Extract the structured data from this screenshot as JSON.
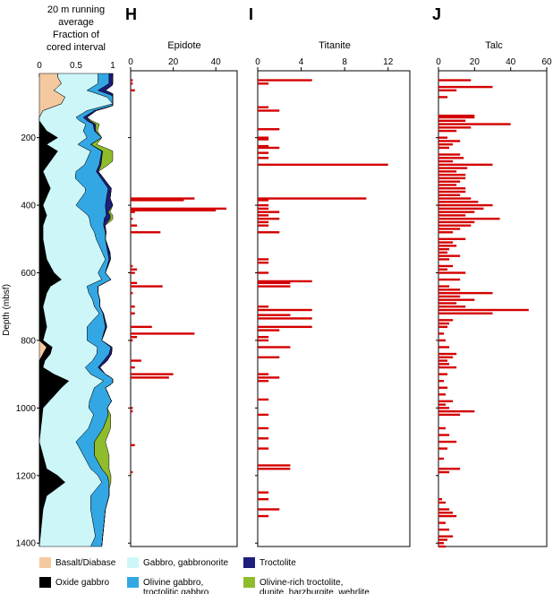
{
  "chart_data": [
    {
      "type": "area",
      "panel_id": "lithology",
      "title_lines": [
        "20 m running",
        "average",
        "Fraction of",
        "cored interval"
      ],
      "ylabel": "Depth (mbsf)",
      "xlim": [
        0,
        1
      ],
      "ylim": [
        1410,
        10
      ],
      "xticks": [
        0,
        0.5,
        1
      ],
      "xtick_labels": [
        "0",
        "0.5",
        "1"
      ],
      "yticks": [
        200,
        400,
        600,
        800,
        1000,
        1200,
        1400
      ],
      "series": [
        {
          "name": "Basalt/Diabase",
          "color": "#f4c9a0",
          "depth": [
            20,
            40,
            60,
            80,
            100,
            120,
            140,
            160,
            200,
            300,
            500,
            600,
            800,
            820,
            840,
            860,
            880,
            900,
            1000,
            1200,
            1410
          ],
          "frac": [
            0.25,
            0.3,
            0.2,
            0.35,
            0.3,
            0.05,
            0,
            0,
            0,
            0,
            0,
            0,
            0,
            0.1,
            0.05,
            0,
            0,
            0,
            0,
            0,
            0
          ]
        },
        {
          "name": "Oxide gabbro",
          "color": "#000000",
          "depth": [
            20,
            150,
            180,
            200,
            220,
            240,
            300,
            350,
            400,
            430,
            460,
            500,
            560,
            600,
            620,
            640,
            660,
            700,
            760,
            800,
            840,
            880,
            900,
            920,
            940,
            1000,
            1100,
            1180,
            1200,
            1220,
            1260,
            1300,
            1410
          ],
          "frac": [
            0,
            0,
            0.1,
            0.25,
            0.1,
            0.25,
            0.05,
            0.15,
            0.05,
            0.1,
            0.05,
            0.05,
            0.1,
            0.2,
            0.3,
            0.15,
            0.1,
            0.05,
            0.1,
            0.05,
            0.1,
            0.05,
            0.2,
            0.4,
            0.3,
            0.05,
            0,
            0.1,
            0.25,
            0.35,
            0.1,
            0.05,
            0
          ]
        },
        {
          "name": "Gabbro, gabbronorite",
          "color": "#cdf6f9",
          "depth": [
            20,
            60,
            100,
            140,
            160,
            200,
            240,
            280,
            320,
            360,
            400,
            440,
            480,
            520,
            560,
            600,
            640,
            680,
            720,
            760,
            800,
            860,
            900,
            940,
            980,
            1020,
            1060,
            1100,
            1140,
            1180,
            1220,
            1260,
            1300,
            1340,
            1380,
            1410
          ],
          "frac": [
            0.55,
            0.45,
            0.7,
            0.5,
            0.6,
            0.4,
            0.45,
            0.5,
            0.4,
            0.5,
            0.45,
            0.6,
            0.7,
            0.75,
            0.8,
            0.6,
            0.5,
            0.65,
            0.75,
            0.55,
            0.6,
            0.65,
            0.5,
            0.45,
            0.55,
            0.7,
            0.65,
            0.5,
            0.55,
            0.6,
            0.5,
            0.6,
            0.65,
            0.7,
            0.75,
            0.7
          ]
        },
        {
          "name": "Olivine gabbro, troctolitic gabbro",
          "color": "#33a7e3",
          "depth": [
            20,
            60,
            100,
            140,
            160,
            200,
            240,
            280,
            320,
            360,
            400,
            440,
            480,
            520,
            560,
            600,
            640,
            680,
            720,
            760,
            800,
            860,
            900,
            940,
            980,
            1020,
            1060,
            1100,
            1140,
            1180,
            1220,
            1260,
            1300,
            1340,
            1380,
            1410
          ],
          "frac": [
            0.15,
            0.15,
            0.1,
            0.1,
            0.1,
            0.2,
            0.15,
            0.2,
            0.35,
            0.3,
            0.4,
            0.2,
            0.15,
            0.1,
            0.05,
            0.1,
            0.15,
            0.1,
            0.05,
            0.25,
            0.2,
            0.15,
            0.2,
            0.15,
            0.3,
            0.2,
            0.2,
            0.25,
            0.15,
            0.15,
            0.1,
            0.25,
            0.2,
            0.15,
            0.1,
            0.15
          ]
        },
        {
          "name": "Troctolite",
          "color": "#1d1d7a",
          "depth": [
            20,
            60,
            80,
            100,
            140,
            200,
            300,
            380,
            400,
            420,
            440,
            460,
            500,
            540,
            600,
            700,
            760,
            800,
            860,
            900,
            1000,
            1410
          ],
          "frac": [
            0.05,
            0.1,
            0.05,
            0,
            0.05,
            0,
            0.03,
            0.05,
            0.1,
            0.03,
            0.08,
            0.02,
            0,
            0.03,
            0,
            0,
            0.02,
            0,
            0.05,
            0,
            0,
            0
          ]
        },
        {
          "name": "Olivine-rich troctolite, dunite, harzburgite, wehrlite",
          "color": "#8fbc2a",
          "depth": [
            20,
            140,
            160,
            200,
            240,
            260,
            280,
            300,
            400,
            440,
            460,
            500,
            600,
            1000,
            1060,
            1100,
            1140,
            1160,
            1180,
            1200,
            1240,
            1300,
            1410
          ],
          "frac": [
            0,
            0,
            0.05,
            0,
            0.15,
            0.2,
            0.1,
            0,
            0,
            0.05,
            0,
            0,
            0,
            0,
            0.1,
            0.15,
            0.2,
            0.15,
            0.1,
            0.05,
            0,
            0,
            0
          ]
        }
      ]
    },
    {
      "type": "bar",
      "panel_id": "epidote",
      "letter": "H",
      "title": "Epidote",
      "xlim": [
        0,
        50
      ],
      "ylim": [
        1410,
        10
      ],
      "xticks": [
        0,
        20,
        40
      ],
      "xtick_labels": [
        "0",
        "20",
        "40"
      ],
      "depth": [
        30,
        40,
        60,
        380,
        385,
        410,
        415,
        420,
        440,
        460,
        480,
        580,
        590,
        600,
        630,
        640,
        660,
        700,
        720,
        760,
        780,
        790,
        800,
        860,
        880,
        900,
        910,
        1000,
        1010,
        1110,
        1190
      ],
      "values": [
        1,
        1,
        2,
        30,
        25,
        45,
        40,
        2,
        1,
        3,
        14,
        1,
        3,
        2,
        3,
        15,
        1,
        2,
        2,
        10,
        30,
        3,
        1,
        5,
        2,
        20,
        18,
        1,
        1,
        2,
        1
      ]
    },
    {
      "type": "bar",
      "panel_id": "titanite",
      "letter": "I",
      "title": "Titanite",
      "xlim": [
        0,
        14
      ],
      "ylim": [
        1410,
        10
      ],
      "xticks": [
        0,
        4,
        8,
        12
      ],
      "xtick_labels": [
        "0",
        "4",
        "8",
        "12"
      ],
      "depth": [
        30,
        40,
        110,
        120,
        175,
        200,
        205,
        225,
        230,
        245,
        260,
        280,
        380,
        385,
        400,
        410,
        420,
        430,
        440,
        450,
        460,
        480,
        560,
        570,
        600,
        625,
        630,
        640,
        700,
        710,
        725,
        735,
        760,
        770,
        790,
        800,
        820,
        850,
        900,
        910,
        920,
        975,
        1020,
        1060,
        1090,
        1120,
        1170,
        1180,
        1250,
        1270,
        1300,
        1320
      ],
      "values": [
        5,
        1,
        1,
        2,
        2,
        1,
        1,
        1,
        2,
        1,
        1,
        12,
        10,
        1,
        1,
        1,
        2,
        1,
        2,
        1,
        1,
        2,
        1,
        1,
        1,
        5,
        3,
        3,
        1,
        5,
        3,
        5,
        5,
        2,
        1,
        1,
        3,
        2,
        1,
        2,
        1,
        1,
        1,
        1,
        1,
        1,
        3,
        3,
        1,
        1,
        2,
        1
      ]
    },
    {
      "type": "bar",
      "panel_id": "talc",
      "letter": "J",
      "title": "Talc",
      "xlim": [
        0,
        60
      ],
      "ylim": [
        1410,
        10
      ],
      "xticks": [
        0,
        20,
        40,
        60
      ],
      "xtick_labels": [
        "0",
        "20",
        "40",
        "60"
      ],
      "depth": [
        30,
        50,
        60,
        80,
        135,
        140,
        150,
        160,
        170,
        180,
        200,
        210,
        220,
        230,
        250,
        260,
        270,
        280,
        290,
        300,
        310,
        320,
        330,
        340,
        350,
        360,
        370,
        380,
        390,
        400,
        410,
        420,
        430,
        440,
        450,
        460,
        470,
        480,
        500,
        510,
        520,
        530,
        540,
        550,
        560,
        580,
        590,
        600,
        620,
        640,
        650,
        660,
        670,
        680,
        690,
        700,
        710,
        720,
        740,
        750,
        760,
        780,
        800,
        820,
        840,
        850,
        860,
        870,
        880,
        900,
        920,
        940,
        960,
        980,
        990,
        1000,
        1010,
        1020,
        1060,
        1080,
        1100,
        1120,
        1150,
        1180,
        1190,
        1270,
        1280,
        1300,
        1310,
        1320,
        1340,
        1360,
        1380,
        1390,
        1400,
        1410
      ],
      "values": [
        18,
        30,
        10,
        5,
        20,
        20,
        15,
        40,
        18,
        10,
        5,
        12,
        8,
        6,
        12,
        14,
        8,
        30,
        16,
        10,
        15,
        15,
        12,
        10,
        15,
        15,
        12,
        18,
        22,
        30,
        25,
        20,
        15,
        34,
        20,
        18,
        12,
        8,
        15,
        8,
        10,
        6,
        5,
        12,
        6,
        8,
        5,
        15,
        12,
        6,
        12,
        30,
        12,
        20,
        10,
        15,
        50,
        30,
        8,
        6,
        5,
        3,
        4,
        6,
        10,
        8,
        5,
        6,
        10,
        5,
        3,
        5,
        4,
        8,
        4,
        6,
        20,
        12,
        4,
        6,
        10,
        5,
        3,
        12,
        6,
        2,
        4,
        6,
        8,
        10,
        4,
        6,
        8,
        5,
        3,
        4
      ]
    }
  ],
  "legend": [
    {
      "label_lines": [
        "Basalt/Diabase"
      ],
      "color": "#f4c9a0"
    },
    {
      "label_lines": [
        "Gabbro, gabbronorite"
      ],
      "color": "#cdf6f9"
    },
    {
      "label_lines": [
        "Troctolite"
      ],
      "color": "#1d1d7a"
    },
    {
      "label_lines": [
        "Oxide gabbro"
      ],
      "color": "#000000"
    },
    {
      "label_lines": [
        "Olivine gabbro,",
        "troctolitic gabbro"
      ],
      "color": "#33a7e3"
    },
    {
      "label_lines": [
        "Olivine-rich troctolite,",
        "dunite, harzburgite, wehrlite"
      ],
      "color": "#8fbc2a"
    }
  ]
}
